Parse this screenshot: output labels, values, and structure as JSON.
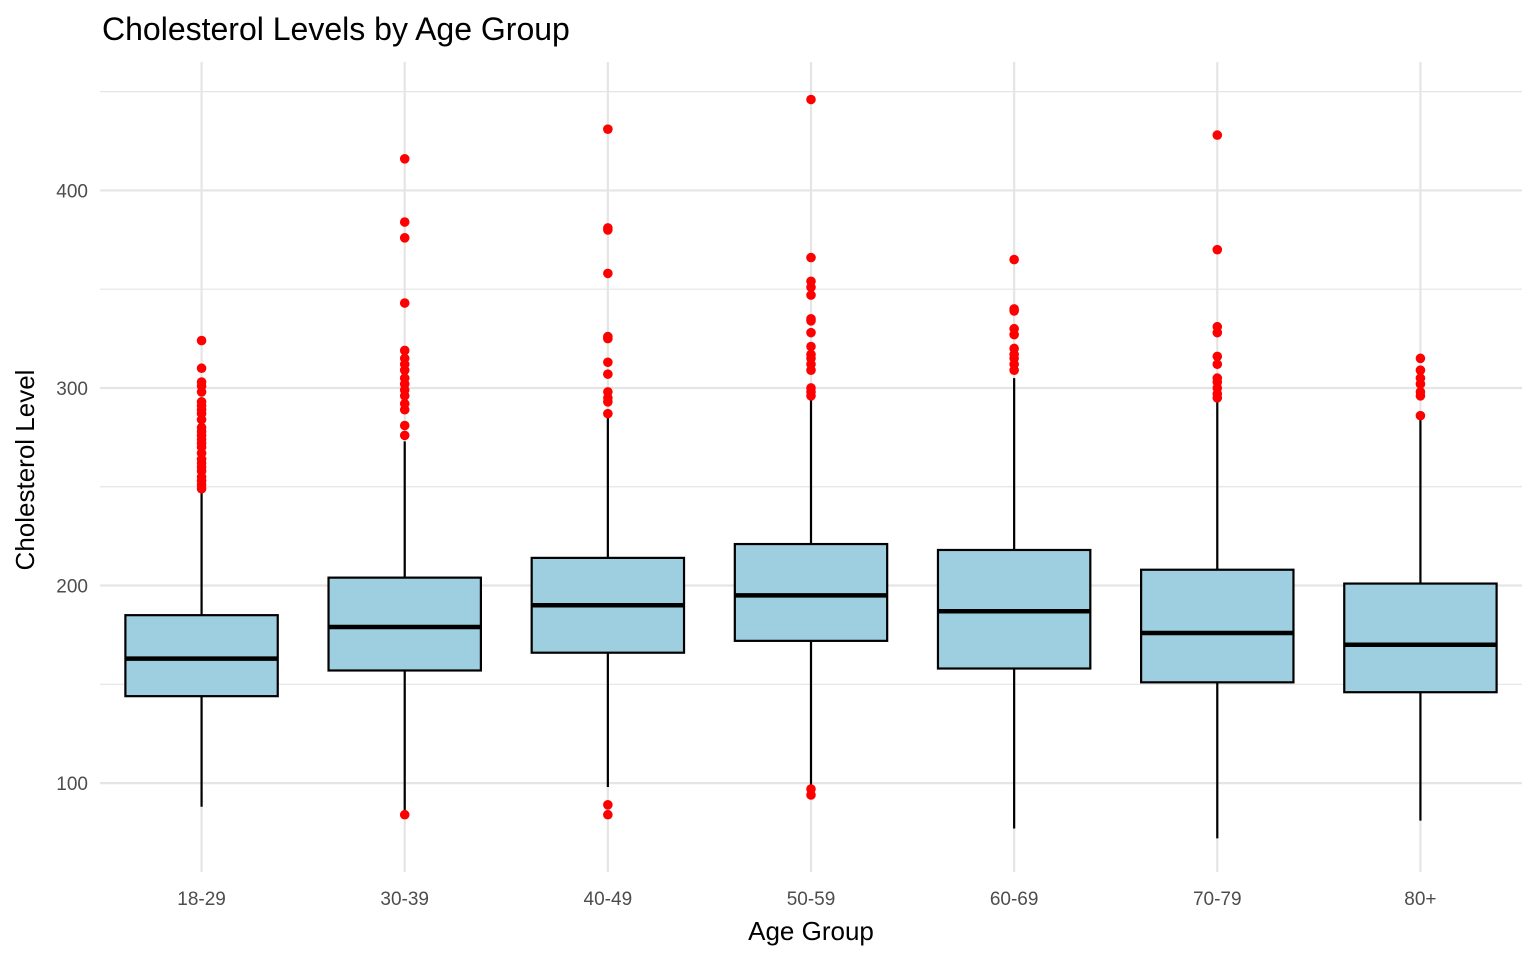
{
  "chart_data": {
    "type": "boxplot",
    "title": "Cholesterol Levels by Age Group",
    "xlabel": "Age Group",
    "ylabel": "Cholesterol Level",
    "ylim": [
      55,
      465
    ],
    "yticks": [
      100,
      200,
      300,
      400
    ],
    "grid": true,
    "legend": "none",
    "colors": {
      "box_fill": "#9ecfe1",
      "outlier": "#ff0000",
      "grid": "#e5e5e5"
    },
    "categories": [
      "18-29",
      "30-39",
      "40-49",
      "50-59",
      "60-69",
      "70-79",
      "80+"
    ],
    "boxes": [
      {
        "q1": 144,
        "median": 163,
        "q3": 185,
        "whisker_low": 88,
        "whisker_high": 247,
        "outliers": [
          249,
          251,
          253,
          255,
          258,
          260,
          262,
          264,
          267,
          270,
          272,
          274,
          276,
          278,
          280,
          284,
          287,
          289,
          291,
          293,
          298,
          301,
          303,
          310,
          324
        ]
      },
      {
        "q1": 157,
        "median": 179,
        "q3": 204,
        "whisker_low": 86,
        "whisker_high": 273,
        "outliers": [
          84,
          276,
          281,
          289,
          292,
          296,
          299,
          302,
          305,
          309,
          312,
          315,
          319,
          343,
          376,
          384,
          416
        ]
      },
      {
        "q1": 166,
        "median": 190,
        "q3": 214,
        "whisker_low": 98,
        "whisker_high": 287,
        "outliers": [
          84,
          89,
          287,
          293,
          295,
          298,
          307,
          313,
          325,
          326,
          358,
          380,
          381,
          431
        ]
      },
      {
        "q1": 172,
        "median": 195,
        "q3": 221,
        "whisker_low": 99,
        "whisker_high": 296,
        "outliers": [
          94,
          97,
          296,
          298,
          300,
          309,
          312,
          315,
          317,
          321,
          328,
          334,
          335,
          347,
          351,
          354,
          366,
          446
        ]
      },
      {
        "q1": 158,
        "median": 187,
        "q3": 218,
        "whisker_low": 77,
        "whisker_high": 305,
        "outliers": [
          309,
          312,
          315,
          317,
          320,
          327,
          330,
          339,
          340,
          365
        ]
      },
      {
        "q1": 151,
        "median": 176,
        "q3": 208,
        "whisker_low": 72,
        "whisker_high": 294,
        "outliers": [
          295,
          297,
          300,
          303,
          305,
          312,
          316,
          328,
          331,
          370,
          428
        ]
      },
      {
        "q1": 146,
        "median": 170,
        "q3": 201,
        "whisker_low": 81,
        "whisker_high": 284,
        "outliers": [
          286,
          296,
          298,
          302,
          305,
          309,
          315
        ]
      }
    ]
  }
}
